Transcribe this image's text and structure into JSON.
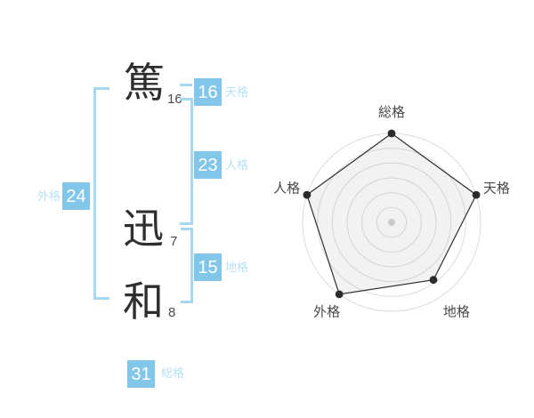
{
  "name_analysis": {
    "characters": [
      {
        "char": "篤",
        "strokes": "16"
      },
      {
        "char": "迅",
        "strokes": "7"
      },
      {
        "char": "和",
        "strokes": "8"
      }
    ],
    "badges": {
      "tenkaku": {
        "value": "16",
        "label": "天格"
      },
      "jinkaku": {
        "value": "23",
        "label": "人格"
      },
      "chikaku": {
        "value": "15",
        "label": "地格"
      },
      "gaikaku": {
        "value": "24",
        "label": "外格"
      },
      "soukaku": {
        "value": "31",
        "label": "総格"
      }
    },
    "colors": {
      "badge_blue": "#82c6ea",
      "bracket_blue": "#a6d8f2",
      "label_blue": "#b9e0f6"
    }
  },
  "chart_data": {
    "type": "radar",
    "categories": [
      "総格",
      "天格",
      "地格",
      "外格",
      "人格"
    ],
    "values": [
      100,
      100,
      80,
      100,
      100
    ],
    "max": 100,
    "rings": 6,
    "start_angle_deg": -90,
    "direction": "clockwise",
    "legend_position": "none",
    "grid": "concentric-circles",
    "styles": {
      "ring_color": "#dcdcdc",
      "polygon_stroke": "#2f2f2f",
      "polygon_fill": "rgba(160,160,160,0.14)",
      "vertex_color": "#2b2b2b",
      "center_dot_color": "#c9c9c9",
      "label_color": "#4a4a4a"
    }
  }
}
